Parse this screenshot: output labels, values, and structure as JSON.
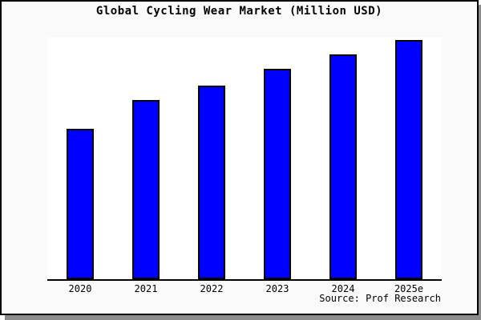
{
  "chart_data": {
    "type": "bar",
    "title": "Global Cycling Wear Market (Million USD)",
    "categories": [
      "2020",
      "2021",
      "2022",
      "2023",
      "2024",
      "2025e"
    ],
    "values": [
      63,
      75,
      81,
      88,
      94,
      100
    ],
    "value_scale": "relative index, 2025e = 100 (y-axis has no ticks or labels)",
    "xlabel": "",
    "ylabel": "",
    "ylim": [
      0,
      101
    ],
    "grid": false,
    "legend": "none",
    "source": "Source: Prof Research",
    "bar_color": "#0000fe",
    "bar_border_color": "#000000"
  },
  "colors": {
    "canvas_background": "#fafafa",
    "plot_background": "#ffffff",
    "axis": "#000000",
    "text": "#000000",
    "frame_border": "#000000",
    "frame_shadow": "#8c8c8c"
  }
}
